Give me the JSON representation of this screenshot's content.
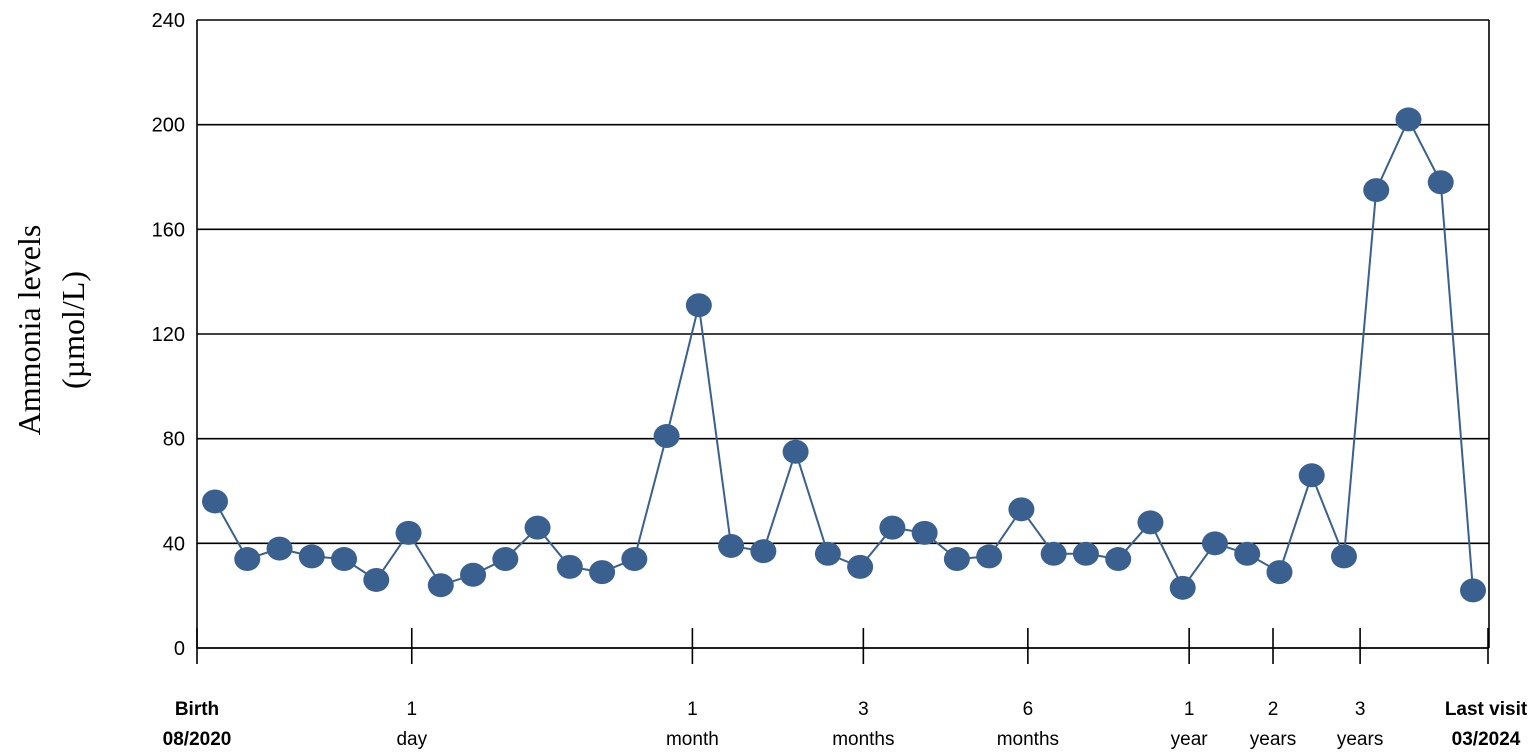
{
  "chart_data": {
    "type": "line",
    "title": "",
    "ylabel_lines": [
      "Ammonia levels",
      "(µmol/L)"
    ],
    "ylim": [
      0,
      240
    ],
    "yticks": [
      0,
      40,
      80,
      120,
      160,
      200,
      240
    ],
    "grid": "horizontal",
    "series_color": "#3a6090",
    "marker_color": "#3a6090",
    "x_ticks": [
      {
        "lines": [
          "Birth",
          "08/2020"
        ],
        "bold": true,
        "index": 0
      },
      {
        "lines": [
          "1",
          "day"
        ],
        "bold": false,
        "index": 6.1
      },
      {
        "lines": [
          "1",
          "month"
        ],
        "bold": false,
        "index": 14.8
      },
      {
        "lines": [
          "3",
          "months"
        ],
        "bold": false,
        "index": 20.1
      },
      {
        "lines": [
          "6",
          "months"
        ],
        "bold": false,
        "index": 25.2
      },
      {
        "lines": [
          "1",
          "year"
        ],
        "bold": false,
        "index": 30.2
      },
      {
        "lines": [
          "2",
          "years"
        ],
        "bold": false,
        "index": 32.8
      },
      {
        "lines": [
          "3",
          "years"
        ],
        "bold": false,
        "index": 35.5
      },
      {
        "lines": [
          "Last visit",
          "03/2024"
        ],
        "bold": true,
        "index": 39.5
      }
    ],
    "series": [
      {
        "values": [
          56,
          34,
          38,
          35,
          34,
          26,
          44,
          24,
          28,
          34,
          46,
          31,
          29,
          34,
          81,
          131,
          39,
          37,
          75,
          36,
          31,
          46,
          44,
          34,
          35,
          53,
          36,
          36,
          34,
          48,
          23,
          40,
          36,
          29,
          66,
          35,
          175,
          202,
          178,
          22
        ]
      }
    ]
  }
}
